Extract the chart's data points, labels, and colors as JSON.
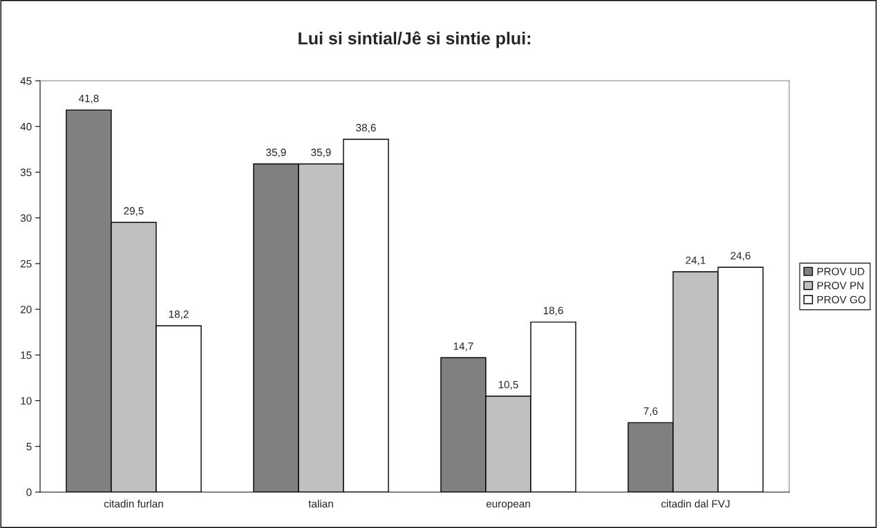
{
  "chart_data": {
    "type": "bar",
    "title": "Lui si sintial/Jê si sintie plui:",
    "categories": [
      "citadin furlan",
      "talian",
      "european",
      "citadin dal FVJ"
    ],
    "series": [
      {
        "name": "PROV UD",
        "color": "#808080",
        "values": [
          41.8,
          35.9,
          14.7,
          7.6
        ],
        "value_labels": [
          "41,8",
          "35,9",
          "14,7",
          "7,6"
        ]
      },
      {
        "name": "PROV PN",
        "color": "#c0c0c0",
        "values": [
          29.5,
          35.9,
          10.5,
          24.1
        ],
        "value_labels": [
          "29,5",
          "35,9",
          "10,5",
          "24,1"
        ]
      },
      {
        "name": "PROV GO",
        "color": "#ffffff",
        "values": [
          18.2,
          38.6,
          18.6,
          24.6
        ],
        "value_labels": [
          "18,2",
          "38,6",
          "18,6",
          "24,6"
        ]
      }
    ],
    "ylim": [
      0,
      45
    ],
    "yticks": [
      0,
      5,
      10,
      15,
      20,
      25,
      30,
      35,
      40,
      45
    ],
    "grid": false,
    "legend": "right"
  }
}
